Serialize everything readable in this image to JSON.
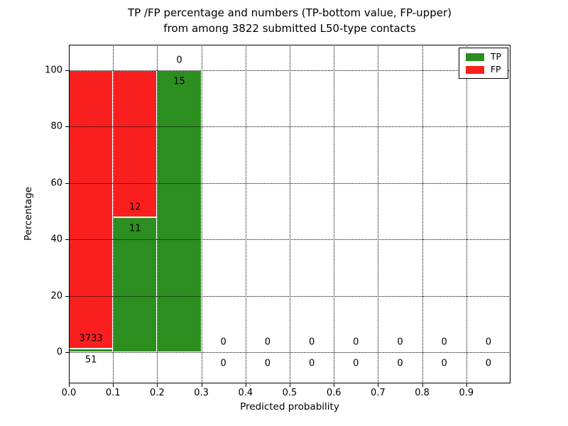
{
  "chart_data": {
    "type": "bar",
    "stacked": true,
    "title_line1": "TP /FP percentage and numbers (TP-bottom value, FP-upper)",
    "title_line2": "from among 3822 submitted L50-type contacts",
    "xlabel": "Predicted probability",
    "ylabel": "Percentage",
    "xlim": [
      0.0,
      1.0
    ],
    "ylim": [
      -11,
      109
    ],
    "grid": "dotted",
    "bar_width": 0.1,
    "colors": {
      "tp": "#2b8e1f",
      "fp": "#fa1f1f"
    },
    "xticks": [
      {
        "v": 0.0,
        "label": "0.0"
      },
      {
        "v": 0.1,
        "label": "0.1"
      },
      {
        "v": 0.2,
        "label": "0.2"
      },
      {
        "v": 0.3,
        "label": "0.3"
      },
      {
        "v": 0.4,
        "label": "0.4"
      },
      {
        "v": 0.5,
        "label": "0.5"
      },
      {
        "v": 0.6,
        "label": "0.6"
      },
      {
        "v": 0.7,
        "label": "0.7"
      },
      {
        "v": 0.8,
        "label": "0.8"
      },
      {
        "v": 0.9,
        "label": "0.9"
      }
    ],
    "yticks": [
      0,
      20,
      40,
      60,
      80,
      100
    ],
    "legend": {
      "position": "upper right",
      "entries": [
        {
          "label": "TP",
          "key": "tp"
        },
        {
          "label": "FP",
          "key": "fp"
        }
      ]
    },
    "bins": [
      {
        "range": [
          0.0,
          0.1
        ],
        "tp": 51,
        "fp": 3733
      },
      {
        "range": [
          0.1,
          0.2
        ],
        "tp": 11,
        "fp": 12
      },
      {
        "range": [
          0.2,
          0.3
        ],
        "tp": 15,
        "fp": 0
      },
      {
        "range": [
          0.3,
          0.4
        ],
        "tp": 0,
        "fp": 0
      },
      {
        "range": [
          0.4,
          0.5
        ],
        "tp": 0,
        "fp": 0
      },
      {
        "range": [
          0.5,
          0.6
        ],
        "tp": 0,
        "fp": 0
      },
      {
        "range": [
          0.6,
          0.7
        ],
        "tp": 0,
        "fp": 0
      },
      {
        "range": [
          0.7,
          0.8
        ],
        "tp": 0,
        "fp": 0
      },
      {
        "range": [
          0.8,
          0.9
        ],
        "tp": 0,
        "fp": 0
      },
      {
        "range": [
          0.9,
          1.0
        ],
        "tp": 0,
        "fp": 0
      }
    ]
  }
}
